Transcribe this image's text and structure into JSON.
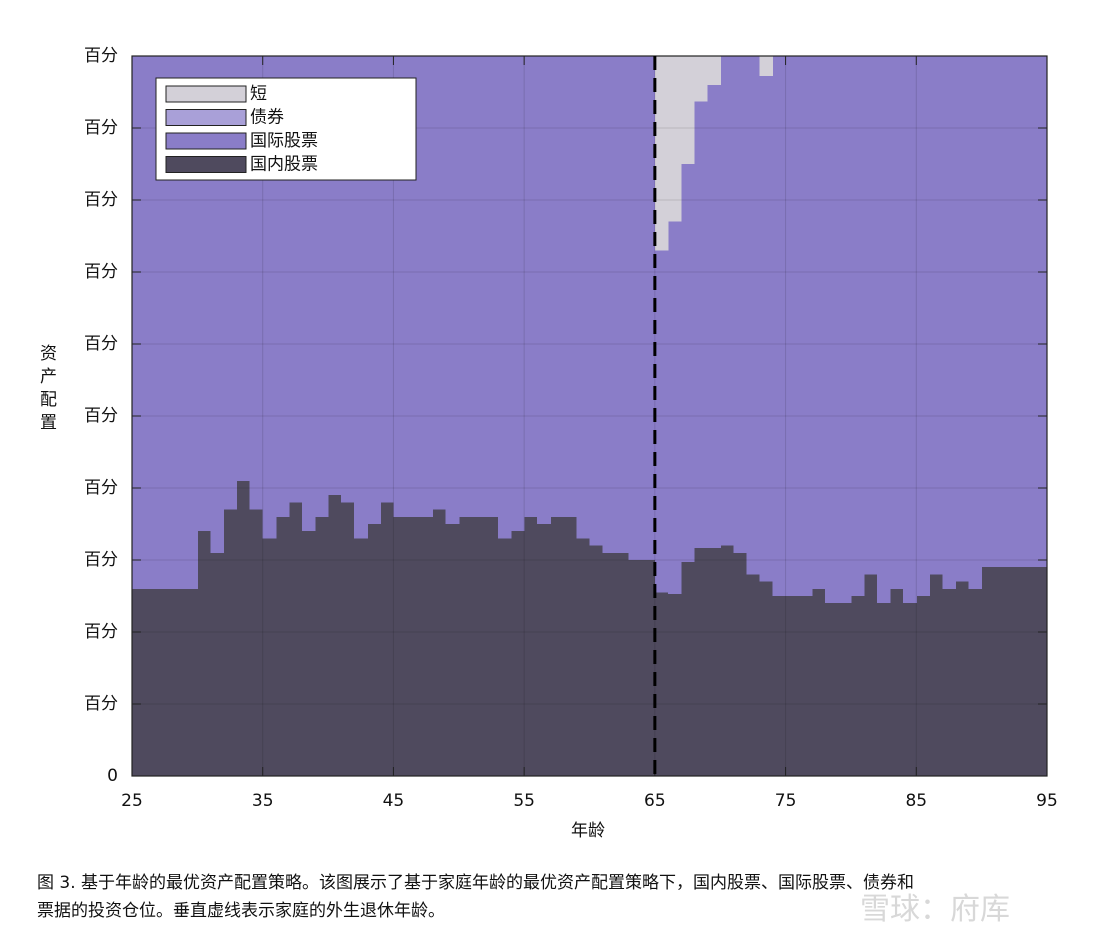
{
  "chart_data": {
    "type": "stacked-step-area",
    "x_label": "年龄",
    "y_label": "资产配置",
    "x": [
      25,
      26,
      27,
      28,
      29,
      30,
      31,
      32,
      33,
      34,
      35,
      36,
      37,
      38,
      39,
      40,
      41,
      42,
      43,
      44,
      45,
      46,
      47,
      48,
      49,
      50,
      51,
      52,
      53,
      54,
      55,
      56,
      57,
      58,
      59,
      60,
      61,
      62,
      63,
      64,
      65,
      66,
      67,
      68,
      69,
      70,
      71,
      72,
      73,
      74,
      75,
      76,
      77,
      78,
      79,
      80,
      81,
      82,
      83,
      84,
      85,
      86,
      87,
      88,
      89,
      90,
      91,
      92,
      93,
      94
    ],
    "series": [
      {
        "name": "短",
        "color": "#d3d0d8",
        "values": [
          0,
          0,
          0,
          0,
          0,
          0,
          0,
          0,
          0,
          0,
          0,
          0,
          0,
          0,
          0,
          0,
          0,
          0,
          0,
          0,
          0,
          0,
          0,
          0,
          0,
          0,
          0,
          0,
          0,
          0,
          0,
          0,
          0,
          0,
          0,
          0,
          0,
          0,
          0,
          0,
          27,
          23,
          15,
          6.3,
          4,
          0,
          0,
          0,
          2.8,
          0,
          0,
          0,
          0,
          0,
          0,
          0,
          0,
          0,
          0,
          0,
          0,
          0,
          0,
          0,
          0,
          0,
          0,
          0,
          0,
          0
        ]
      },
      {
        "name": "债券",
        "color": "#a9a0d8",
        "values": [
          0,
          0,
          0,
          0,
          0,
          0,
          0,
          0,
          0,
          0,
          0,
          0,
          0,
          0,
          0,
          0,
          0,
          0,
          0,
          0,
          0,
          0,
          0,
          0,
          0,
          0,
          0,
          0,
          0,
          0,
          0,
          0,
          0,
          0,
          0,
          0,
          0,
          0,
          0,
          0,
          0,
          0,
          0,
          0,
          0,
          0,
          0,
          0,
          0,
          0,
          0,
          0,
          0,
          0,
          0,
          0,
          0,
          0,
          0,
          0,
          0,
          0,
          0,
          0,
          0,
          0,
          0,
          0,
          0,
          0
        ]
      },
      {
        "name": "国际股票",
        "color": "#8a7dc8",
        "values": [
          74,
          74,
          74,
          74,
          74,
          66,
          69,
          63,
          59,
          63,
          67,
          64,
          62,
          66,
          64,
          61,
          62,
          67,
          65,
          62,
          64,
          64,
          64,
          63,
          65,
          64,
          64,
          64,
          67,
          66,
          64,
          65,
          64,
          64,
          67,
          68,
          69,
          69,
          70,
          70,
          47.5,
          51.7,
          55.3,
          62,
          64.3,
          68,
          69,
          72,
          70.2,
          75,
          75,
          75,
          74,
          76,
          76,
          75,
          72,
          76,
          74,
          76,
          75,
          72,
          74,
          73,
          74,
          71,
          71,
          71,
          71,
          71
        ]
      },
      {
        "name": "国内股票",
        "color": "#4f4a5e",
        "values": [
          26,
          26,
          26,
          26,
          26,
          34,
          31,
          37,
          41,
          37,
          33,
          36,
          38,
          34,
          36,
          39,
          38,
          33,
          35,
          38,
          36,
          36,
          36,
          37,
          35,
          36,
          36,
          36,
          33,
          34,
          36,
          35,
          36,
          36,
          33,
          32,
          31,
          31,
          30,
          30,
          25.5,
          25.3,
          29.7,
          31.7,
          31.7,
          32,
          31,
          28,
          27,
          25,
          25,
          25,
          26,
          24,
          24,
          25,
          28,
          24,
          26,
          24,
          25,
          28,
          26,
          27,
          26,
          29,
          29,
          29,
          29,
          29
        ]
      }
    ],
    "xlim": [
      25,
      95
    ],
    "xticks": [
      25,
      35,
      45,
      55,
      65,
      75,
      85,
      95
    ],
    "ylim": [
      0,
      100
    ],
    "yticks": [
      0,
      {
        "value": 10,
        "label": "百分"
      },
      {
        "value": 20,
        "label": "百分"
      },
      {
        "value": 30,
        "label": "百分"
      },
      {
        "value": 40,
        "label": "百分"
      },
      {
        "value": 50,
        "label": "百分"
      },
      {
        "value": 60,
        "label": "百分"
      },
      {
        "value": 70,
        "label": "百分"
      },
      {
        "value": 80,
        "label": "百分"
      },
      {
        "value": 90,
        "label": "百分"
      },
      {
        "value": 100,
        "label": "百分"
      }
    ],
    "vline": 65,
    "grid": true,
    "legend": "upper-left"
  },
  "caption": [
    "图 3. 基于年龄的最优资产配置策略。该图展示了基于家庭年龄的最优资产配置策略下，国内股票、国际股票、债券和",
    "票据的投资仓位。垂直虚线表示家庭的外生退休年龄。"
  ],
  "watermark": "雪球：府库"
}
